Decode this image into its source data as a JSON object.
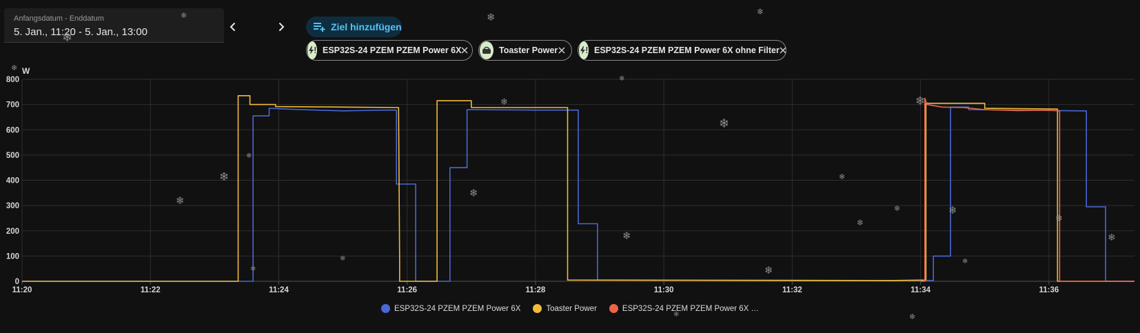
{
  "date_picker": {
    "label": "Anfangsdatum - Enddatum",
    "value": "5. Jan., 11:20 - 5. Jan., 13:00"
  },
  "nav": {
    "prev_icon": "chevron-left-icon",
    "next_icon": "chevron-right-icon"
  },
  "add_target": {
    "label": "Ziel hinzufügen",
    "icon": "playlist-plus-icon"
  },
  "chips": [
    {
      "label": "ESP32S-24 PZEM PZEM Power 6X",
      "icon": "flash-alert-icon"
    },
    {
      "label": "Toaster Power",
      "icon": "toaster-icon"
    },
    {
      "label": "ESP32S-24 PZEM PZEM Power 6X ohne Filter",
      "icon": "flash-alert-icon"
    }
  ],
  "colors": {
    "background": "#111111",
    "blue": "#4a67d6",
    "yellow": "#f2bb3b",
    "red": "#ec6549",
    "accent": "#56c1f6",
    "chip_avatar": "#d8ecc9"
  },
  "chart_data": {
    "type": "line",
    "unit": "W",
    "x_ticks": [
      "11:20",
      "11:22",
      "11:24",
      "11:26",
      "11:28",
      "11:30",
      "11:32",
      "11:34",
      "11:36"
    ],
    "y_ticks": [
      "0",
      "100",
      "200",
      "300",
      "400",
      "500",
      "600",
      "700",
      "800"
    ],
    "xlim": [
      "11:20",
      "11:37:20"
    ],
    "ylim": [
      0,
      800
    ],
    "grid": true,
    "legend_position": "bottom",
    "series": [
      {
        "name": "ESP32S-24 PZEM PZEM Power 6X",
        "legend_label": "ESP32S-24 PZEM PZEM Power 6X",
        "color": "#4a67d6",
        "points": [
          [
            "11:20:00",
            0
          ],
          [
            "11:23:36",
            0
          ],
          [
            "11:23:36",
            655
          ],
          [
            "11:23:51",
            655
          ],
          [
            "11:23:51",
            685
          ],
          [
            "11:24:20",
            680
          ],
          [
            "11:25:00",
            675
          ],
          [
            "11:25:40",
            678
          ],
          [
            "11:25:50",
            678
          ],
          [
            "11:25:50",
            385
          ],
          [
            "11:26:08",
            385
          ],
          [
            "11:26:08",
            0
          ],
          [
            "11:26:40",
            0
          ],
          [
            "11:26:40",
            450
          ],
          [
            "11:26:56",
            450
          ],
          [
            "11:26:56",
            680
          ],
          [
            "11:28:00",
            678
          ],
          [
            "11:28:40",
            678
          ],
          [
            "11:28:40",
            228
          ],
          [
            "11:28:58",
            228
          ],
          [
            "11:28:58",
            5
          ],
          [
            "11:34:12",
            3
          ],
          [
            "11:34:12",
            100
          ],
          [
            "11:34:28",
            100
          ],
          [
            "11:34:28",
            690
          ],
          [
            "11:34:45",
            690
          ],
          [
            "11:34:45",
            680
          ],
          [
            "11:36:30",
            675
          ],
          [
            "11:36:35",
            675
          ],
          [
            "11:36:35",
            295
          ],
          [
            "11:36:53",
            295
          ],
          [
            "11:36:53",
            0
          ],
          [
            "11:37:20",
            0
          ]
        ]
      },
      {
        "name": "Toaster Power",
        "legend_label": "Toaster Power",
        "color": "#f2bb3b",
        "points": [
          [
            "11:20:00",
            0
          ],
          [
            "11:23:22",
            0
          ],
          [
            "11:23:22",
            735
          ],
          [
            "11:23:33",
            735
          ],
          [
            "11:23:33",
            700
          ],
          [
            "11:23:57",
            700
          ],
          [
            "11:23:57",
            692
          ],
          [
            "11:25:00",
            690
          ],
          [
            "11:25:52",
            688
          ],
          [
            "11:25:53",
            80
          ],
          [
            "11:25:53",
            0
          ],
          [
            "11:26:28",
            0
          ],
          [
            "11:26:28",
            715
          ],
          [
            "11:26:60",
            715
          ],
          [
            "11:27:00",
            688
          ],
          [
            "11:28:30",
            688
          ],
          [
            "11:28:30",
            5
          ],
          [
            "11:33:30",
            3
          ],
          [
            "11:34:05",
            5
          ],
          [
            "11:34:05",
            705
          ],
          [
            "11:35:00",
            705
          ],
          [
            "11:35:00",
            685
          ],
          [
            "11:36:08",
            682
          ],
          [
            "11:36:08",
            0
          ],
          [
            "11:37:20",
            0
          ]
        ]
      },
      {
        "name": "ESP32S-24 PZEM PZEM Power 6X ohne Filter",
        "legend_label": "ESP32S-24 PZEM PZEM Power 6X …",
        "color": "#ec6549",
        "points": [
          [
            "11:34:00",
            0
          ],
          [
            "11:34:04",
            0
          ],
          [
            "11:34:04",
            725
          ],
          [
            "11:34:06",
            700
          ],
          [
            "11:34:20",
            690
          ],
          [
            "11:34:40",
            688
          ],
          [
            "11:35:00",
            680
          ],
          [
            "11:35:30",
            676
          ],
          [
            "11:36:00",
            677
          ],
          [
            "11:36:10",
            675
          ],
          [
            "11:36:10",
            0
          ],
          [
            "11:37:20",
            0
          ]
        ]
      }
    ]
  }
}
